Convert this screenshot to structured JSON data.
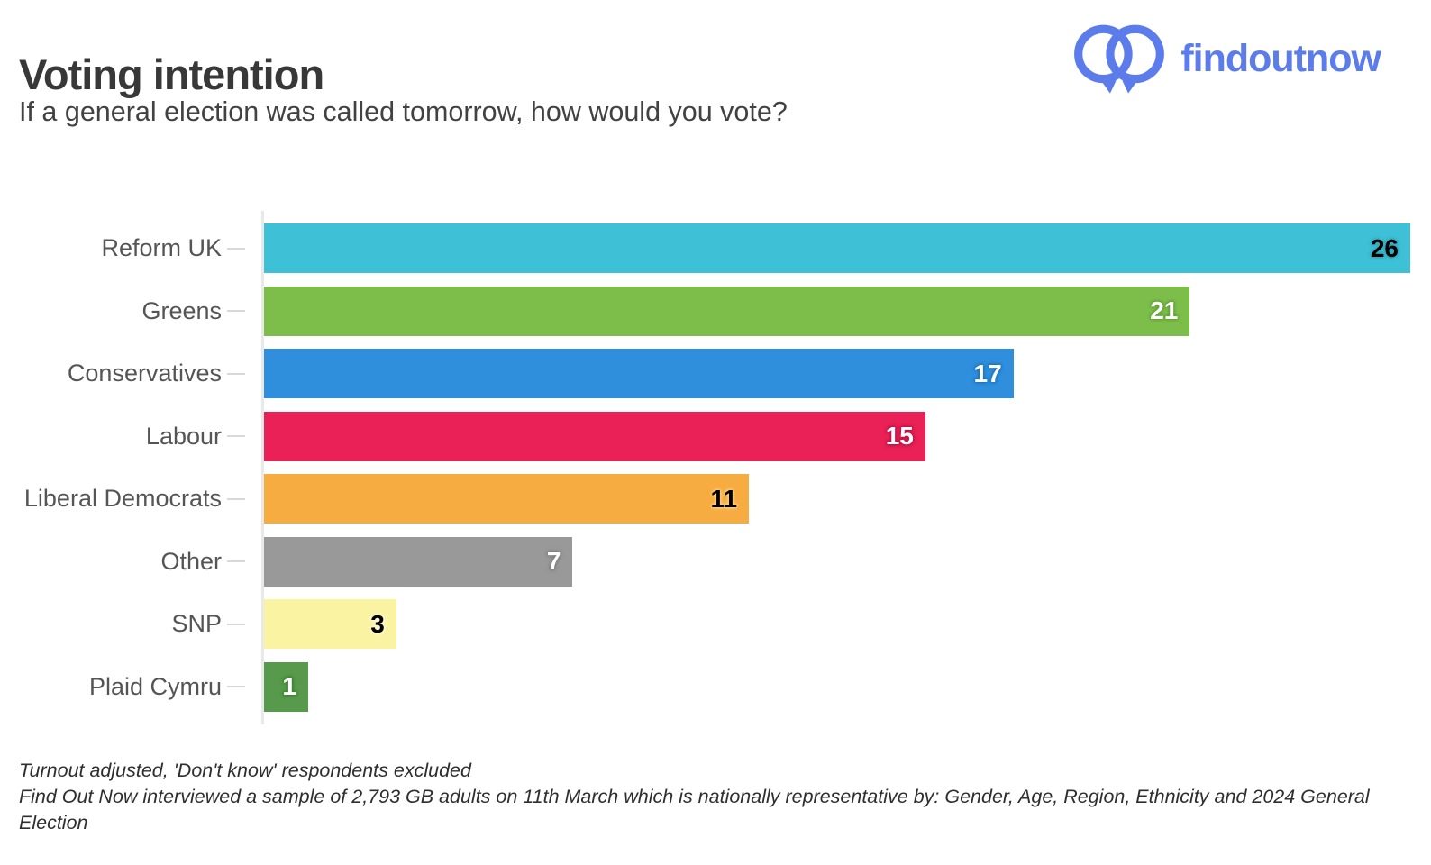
{
  "header": {
    "title": "Voting intention",
    "subtitle": "If a general election was called tomorrow, how would you vote?"
  },
  "logo": {
    "text": "findoutnow",
    "color": "#5B7CEA",
    "icon": "two-overlapping-speech-bubbles-icon"
  },
  "chart_data": {
    "type": "bar",
    "orientation": "horizontal",
    "title": "Voting intention",
    "xlabel": "",
    "ylabel": "",
    "xlim": [
      0,
      26
    ],
    "grid": false,
    "legend": "none",
    "categories": [
      "Reform UK",
      "Greens",
      "Conservatives",
      "Labour",
      "Liberal Democrats",
      "Other",
      "SNP",
      "Plaid Cymru"
    ],
    "values": [
      26,
      21,
      17,
      15,
      11,
      7,
      3,
      1
    ],
    "bar_colors": [
      "#3EC0D6",
      "#7DBE4A",
      "#2F8FDD",
      "#E92156",
      "#F6AC40",
      "#999999",
      "#FAF3A2",
      "#579A4B"
    ],
    "value_label_colors": [
      "#000000",
      "#ffffff",
      "#ffffff",
      "#ffffff",
      "#000000",
      "#ffffff",
      "#000000",
      "#ffffff"
    ],
    "value_label_halo_colors": [
      "#2fa7bc",
      "#5f9e35",
      "#1e72bb",
      "#bc1040",
      "#ffd27f",
      "#7b7b7b",
      "#fffde0",
      "#3e7a36"
    ],
    "axis_color": "#e9e9e9",
    "tick_color": "#d9d9d9",
    "category_label_color": "#555555"
  },
  "footer": {
    "line1": "Turnout adjusted, 'Don't know' respondents excluded",
    "line2": "Find Out Now interviewed a sample of 2,793 GB adults on 11th March which is nationally representative by: Gender, Age, Region, Ethnicity and 2024 General Election"
  }
}
